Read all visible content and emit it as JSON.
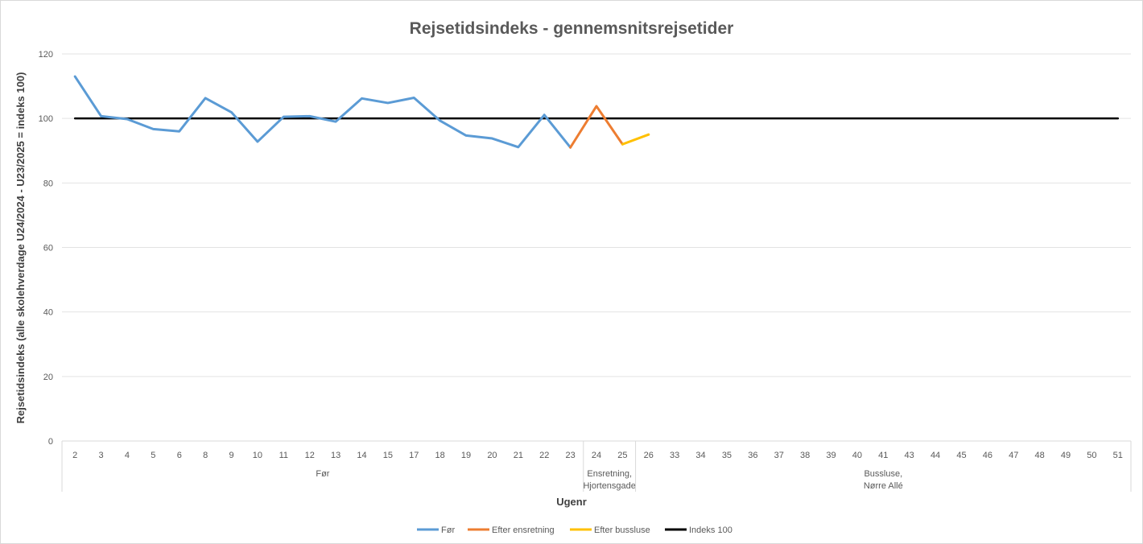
{
  "chart_data": {
    "type": "line",
    "title": "Rejsetidsindeks - gennemsnitsrejsetider",
    "xlabel": "Ugenr",
    "ylabel": "Rejsetidsindeks (alle skolehverdage U24/2024 - U23/2025 = indeks 100)",
    "ylim": [
      0,
      120
    ],
    "yticks": [
      0,
      20,
      40,
      60,
      80,
      100,
      120
    ],
    "grid": true,
    "legend_position": "bottom",
    "categories": [
      "2",
      "3",
      "4",
      "5",
      "6",
      "8",
      "9",
      "10",
      "11",
      "12",
      "13",
      "14",
      "15",
      "17",
      "18",
      "19",
      "20",
      "21",
      "22",
      "23",
      "24",
      "25",
      "26",
      "33",
      "34",
      "35",
      "36",
      "37",
      "38",
      "39",
      "40",
      "41",
      "43",
      "44",
      "45",
      "46",
      "47",
      "48",
      "49",
      "50",
      "51"
    ],
    "groups": [
      {
        "label": "Før",
        "lines": [
          "Før"
        ],
        "from": 0,
        "to": 19
      },
      {
        "label": "Ensretning, Hjortensgade",
        "lines": [
          "Ensretning,",
          "Hjortensgade"
        ],
        "from": 20,
        "to": 21
      },
      {
        "label": "Bussluse, Nørre Allé",
        "lines": [
          "Bussluse,",
          "Nørre Allé"
        ],
        "from": 22,
        "to": 40
      }
    ],
    "series": [
      {
        "name": "Før",
        "color": "#5b9bd5",
        "values": [
          113,
          100.7,
          99.8,
          96.7,
          96,
          106.3,
          101.9,
          92.8,
          100.5,
          100.7,
          99,
          106.2,
          104.8,
          106.4,
          99.3,
          94.7,
          93.8,
          91.1,
          101.1,
          91,
          null,
          null,
          null,
          null,
          null,
          null,
          null,
          null,
          null,
          null,
          null,
          null,
          null,
          null,
          null,
          null,
          null,
          null,
          null,
          null,
          null
        ]
      },
      {
        "name": "Efter ensretning",
        "color": "#ed7d31",
        "values": [
          null,
          null,
          null,
          null,
          null,
          null,
          null,
          null,
          null,
          null,
          null,
          null,
          null,
          null,
          null,
          null,
          null,
          null,
          null,
          91,
          103.8,
          92,
          null,
          null,
          null,
          null,
          null,
          null,
          null,
          null,
          null,
          null,
          null,
          null,
          null,
          null,
          null,
          null,
          null,
          null,
          null
        ]
      },
      {
        "name": "Efter bussluse",
        "color": "#ffc000",
        "values": [
          null,
          null,
          null,
          null,
          null,
          null,
          null,
          null,
          null,
          null,
          null,
          null,
          null,
          null,
          null,
          null,
          null,
          null,
          null,
          null,
          null,
          92,
          95,
          null,
          null,
          null,
          null,
          null,
          null,
          null,
          null,
          null,
          null,
          null,
          null,
          null,
          null,
          null,
          null,
          null,
          null
        ]
      },
      {
        "name": "Indeks 100",
        "color": "#000000",
        "values": [
          100,
          100,
          100,
          100,
          100,
          100,
          100,
          100,
          100,
          100,
          100,
          100,
          100,
          100,
          100,
          100,
          100,
          100,
          100,
          100,
          100,
          100,
          100,
          100,
          100,
          100,
          100,
          100,
          100,
          100,
          100,
          100,
          100,
          100,
          100,
          100,
          100,
          100,
          100,
          100,
          100
        ]
      }
    ]
  }
}
